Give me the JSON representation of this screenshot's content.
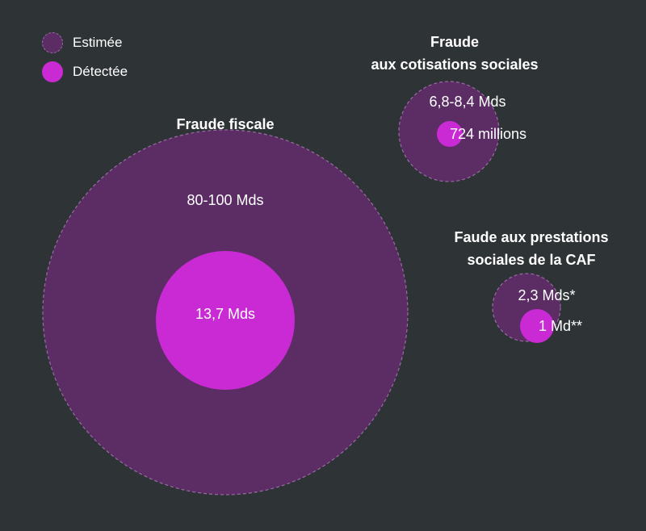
{
  "chart_data": {
    "type": "bubble",
    "legend": [
      {
        "label": "Estimée",
        "color": "#5b2d64",
        "dashed": true
      },
      {
        "label": "Détectée",
        "color": "#c92ad4",
        "dashed": false
      }
    ],
    "groups": [
      {
        "title_lines": [
          "Fraude fiscale"
        ],
        "estimated_label": "80-100 Mds",
        "detected_label": "13,7 Mds",
        "estimated_mds": 90,
        "detected_mds": 13.7
      },
      {
        "title_lines": [
          "Fraude",
          "aux cotisations sociales"
        ],
        "estimated_label": "6,8-8,4 Mds",
        "detected_label": "724 millions",
        "estimated_mds": 7.6,
        "detected_mds": 0.724
      },
      {
        "title_lines": [
          "Faude aux prestations",
          "sociales de la CAF"
        ],
        "estimated_label": "2,3 Mds*",
        "detected_label": "1 Md**",
        "estimated_mds": 2.3,
        "detected_mds": 1
      }
    ]
  }
}
